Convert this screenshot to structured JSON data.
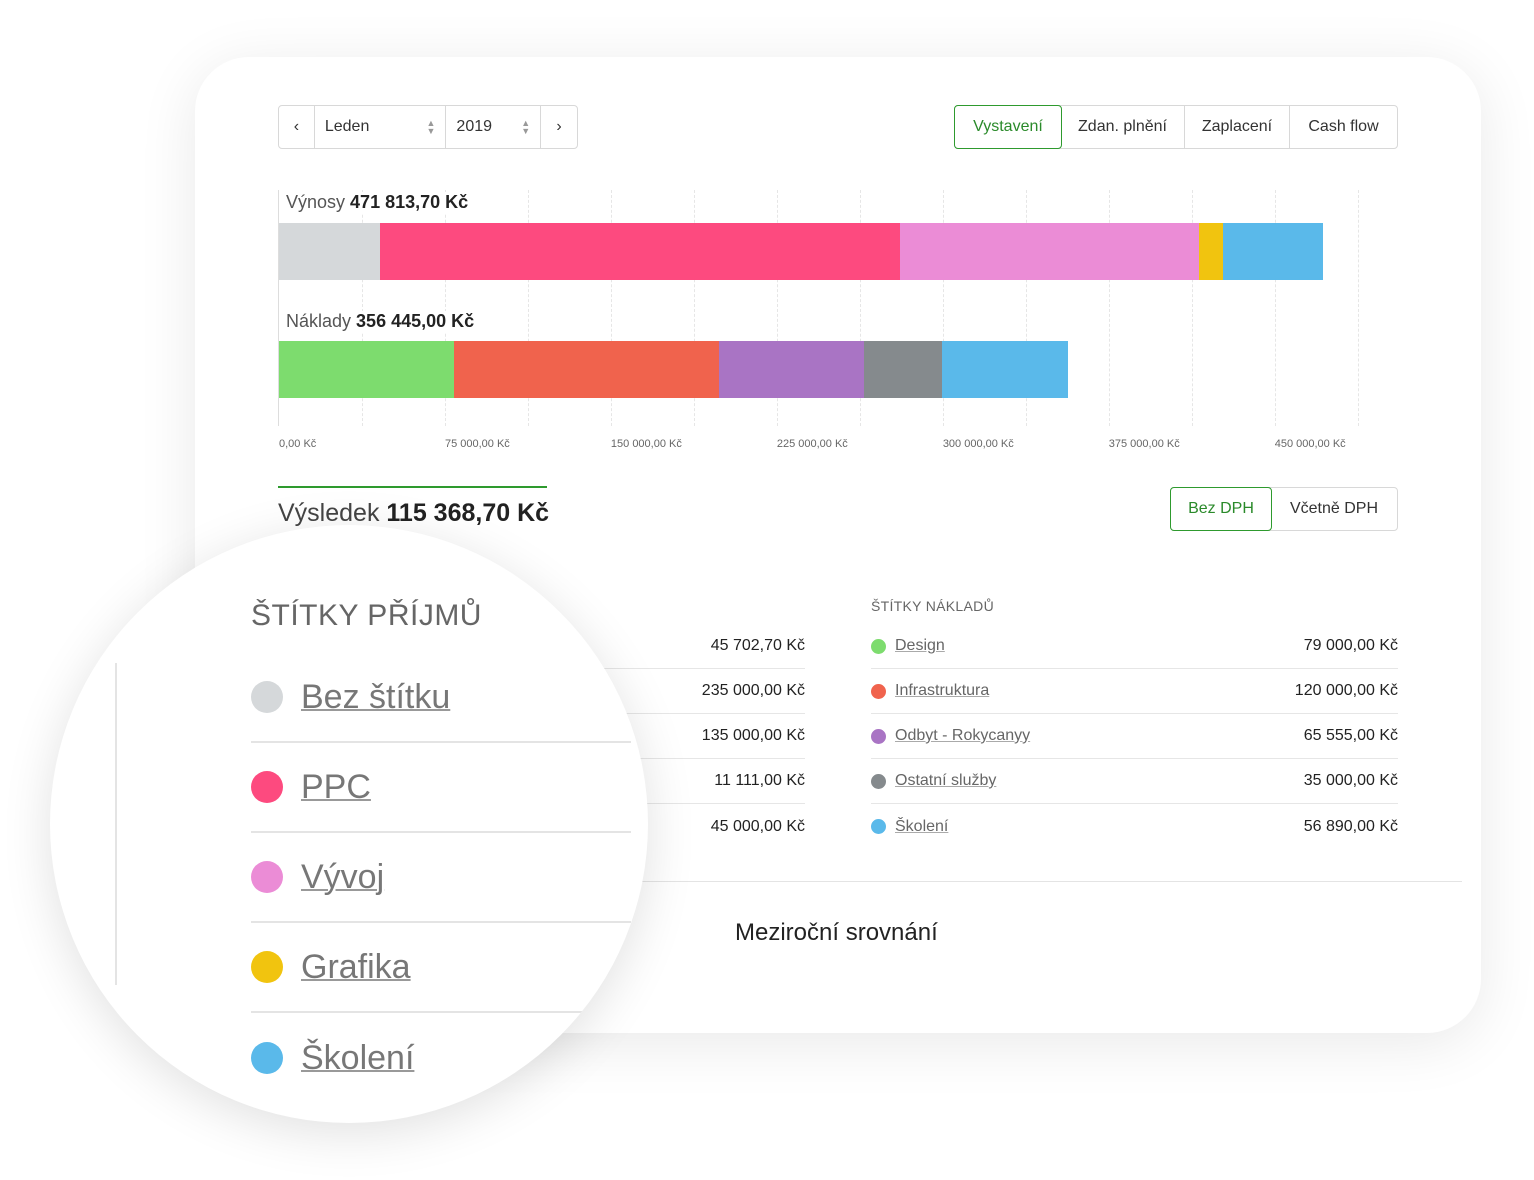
{
  "period": {
    "month": "Leden",
    "year": "2019",
    "prev_icon": "chevron-left-icon",
    "next_icon": "chevron-right-icon"
  },
  "view_tabs": [
    {
      "label": "Vystavení",
      "active": true
    },
    {
      "label": "Zdan. plnění",
      "active": false
    },
    {
      "label": "Zaplacení",
      "active": false
    },
    {
      "label": "Cash flow",
      "active": false
    }
  ],
  "vat_tabs": [
    {
      "label": "Bez DPH",
      "active": true
    },
    {
      "label": "Včetně DPH",
      "active": false
    }
  ],
  "accent_color": "#2e9a2e",
  "chart_data": {
    "type": "bar",
    "orientation": "horizontal-stacked",
    "xlim": [
      0,
      500000
    ],
    "xticks": [
      "0,00 Kč",
      "75 000,00 Kč",
      "150 000,00 Kč",
      "225 000,00 Kč",
      "300 000,00 Kč",
      "375 000,00 Kč",
      "450 000,00 Kč"
    ],
    "xtick_values": [
      0,
      75000,
      150000,
      225000,
      300000,
      375000,
      450000
    ],
    "grid": true,
    "bars": [
      {
        "label": "Výnosy",
        "total": "471 813,70 Kč",
        "segments": [
          {
            "name": "Bez štítku",
            "value": 45702.7,
            "color": "#d5d8da"
          },
          {
            "name": "PPC",
            "value": 235000,
            "color": "#fd4a7f"
          },
          {
            "name": "Vývoj",
            "value": 135000,
            "color": "#eb8cd6"
          },
          {
            "name": "Grafika",
            "value": 11111,
            "color": "#f1c40f"
          },
          {
            "name": "Školení",
            "value": 45000,
            "color": "#5ab9ea"
          }
        ]
      },
      {
        "label": "Náklady",
        "total": "356 445,00 Kč",
        "segments": [
          {
            "name": "Design",
            "value": 79000,
            "color": "#7ddc6e"
          },
          {
            "name": "Infrastruktura",
            "value": 120000,
            "color": "#f0634d"
          },
          {
            "name": "Odbyt - Rokycanyy",
            "value": 65555,
            "color": "#a974c4"
          },
          {
            "name": "Ostatní služby",
            "value": 35000,
            "color": "#858a8d"
          },
          {
            "name": "Školení",
            "value": 56890,
            "color": "#5ab9ea"
          }
        ]
      }
    ]
  },
  "result": {
    "label": "Výsledek",
    "value": "115 368,70 Kč"
  },
  "income_tags": {
    "title": "ŠTÍTKY PŘÍJMŮ",
    "items": [
      {
        "name": "Bez štítku",
        "value": "45 702,70 Kč",
        "color": "#d5d8da"
      },
      {
        "name": "PPC",
        "value": "235 000,00 Kč",
        "color": "#fd4a7f"
      },
      {
        "name": "Vývoj",
        "value": "135 000,00 Kč",
        "color": "#eb8cd6"
      },
      {
        "name": "Grafika",
        "value": "11 111,00 Kč",
        "color": "#f1c40f"
      },
      {
        "name": "Školení",
        "value": "45 000,00 Kč",
        "color": "#5ab9ea"
      }
    ]
  },
  "cost_tags": {
    "title": "ŠTÍTKY NÁKLADŮ",
    "items": [
      {
        "name": "Design",
        "value": "79 000,00 Kč",
        "color": "#7ddc6e"
      },
      {
        "name": "Infrastruktura",
        "value": "120 000,00 Kč",
        "color": "#f0634d"
      },
      {
        "name": "Odbyt - Rokycanyy",
        "value": "65 555,00 Kč",
        "color": "#a974c4"
      },
      {
        "name": "Ostatní služby",
        "value": "35 000,00 Kč",
        "color": "#858a8d"
      },
      {
        "name": "Školení",
        "value": "56 890,00 Kč",
        "color": "#5ab9ea"
      }
    ]
  },
  "comparison_title": "Meziroční srovnání"
}
